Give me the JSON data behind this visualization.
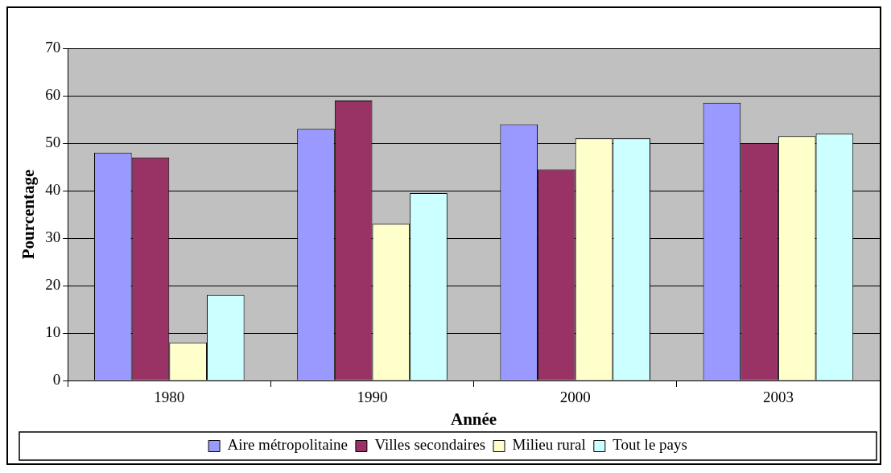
{
  "chart_data": {
    "type": "bar",
    "xlabel": "Année",
    "ylabel": "Pourcentage",
    "categories": [
      "1980",
      "1990",
      "2000",
      "2003"
    ],
    "series": [
      {
        "name": "Aire métropolitaine",
        "color": "#9999ff",
        "values": [
          48,
          53,
          54,
          58.5
        ]
      },
      {
        "name": "Villes secondaires",
        "color": "#993366",
        "values": [
          47,
          59,
          44.5,
          50
        ]
      },
      {
        "name": "Milieu rural",
        "color": "#ffffcc",
        "values": [
          8,
          33,
          51,
          51.5
        ]
      },
      {
        "name": "Tout le pays",
        "color": "#ccffff",
        "values": [
          18,
          39.5,
          51,
          52
        ]
      }
    ],
    "ylim": [
      0,
      70
    ],
    "yticks": [
      0,
      10,
      20,
      30,
      40,
      50,
      60,
      70
    ],
    "grid": "y",
    "legend": "bottom"
  }
}
